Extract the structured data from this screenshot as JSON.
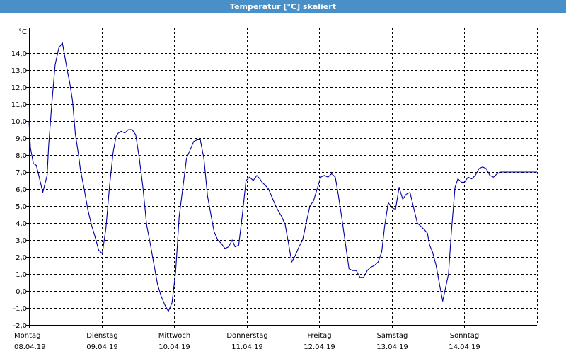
{
  "window": {
    "title": "Temperatur [°C] skaliert"
  },
  "colors": {
    "titlebar": "#4a90c8",
    "line": "#0000a0",
    "grid": "#000000"
  },
  "chart_data": {
    "type": "line",
    "title": "Temperatur [°C] skaliert",
    "ylabel": "°C",
    "xlabel": "",
    "ylim": [
      -2.0,
      15.5
    ],
    "yticks": [
      -2.0,
      -1.0,
      0.0,
      1.0,
      2.0,
      3.0,
      4.0,
      5.0,
      6.0,
      7.0,
      8.0,
      9.0,
      10.0,
      11.0,
      12.0,
      13.0,
      14.0
    ],
    "ytick_labels": [
      "-2,0",
      "-1,0",
      "0,0",
      "1,0",
      "2,0",
      "3,0",
      "4,0",
      "5,0",
      "6,0",
      "7,0",
      "8,0",
      "9,0",
      "10,0",
      "11,0",
      "12,0",
      "13,0",
      "14,0"
    ],
    "x_unit": "day",
    "xlim": [
      0,
      7
    ],
    "xticks": [
      {
        "day": "Montag",
        "date": "08.04.19"
      },
      {
        "day": "Dienstag",
        "date": "09.04.19"
      },
      {
        "day": "Mittwoch",
        "date": "10.04.19"
      },
      {
        "day": "Donnerstag",
        "date": "11.04.19"
      },
      {
        "day": "Freitag",
        "date": "12.04.19"
      },
      {
        "day": "Samstag",
        "date": "13.04.19"
      },
      {
        "day": "Sonntag",
        "date": "14.04.19"
      }
    ],
    "grid": true,
    "series": [
      {
        "x": [
          0.0,
          0.02,
          0.06,
          0.1,
          0.14,
          0.19,
          0.25,
          0.27,
          0.31,
          0.36,
          0.41,
          0.46,
          0.51,
          0.54,
          0.56,
          0.6,
          0.64,
          0.68,
          0.71,
          0.76,
          0.81,
          0.86,
          0.91,
          0.96,
          1.01,
          1.06,
          1.11,
          1.16,
          1.2,
          1.23,
          1.27,
          1.32,
          1.37,
          1.42,
          1.47,
          1.52,
          1.57,
          1.62,
          1.67,
          1.72,
          1.77,
          1.82,
          1.87,
          1.92,
          1.97,
          2.02,
          2.07,
          2.12,
          2.17,
          2.22,
          2.27,
          2.32,
          2.36,
          2.41,
          2.46,
          2.51,
          2.55,
          2.6,
          2.65,
          2.7,
          2.75,
          2.8,
          2.84,
          2.89,
          2.94,
          2.99,
          3.04,
          3.09,
          3.14,
          3.18,
          3.21,
          3.26,
          3.3,
          3.35,
          3.4,
          3.45,
          3.48,
          3.53,
          3.58,
          3.62,
          3.67,
          3.72,
          3.77,
          3.82,
          3.87,
          3.92,
          3.97,
          4.02,
          4.07,
          4.12,
          4.17,
          4.22,
          4.26,
          4.31,
          4.36,
          4.41,
          4.46,
          4.51,
          4.56,
          4.61,
          4.66,
          4.71,
          4.76,
          4.81,
          4.86,
          4.9,
          4.95,
          5.0,
          5.05,
          5.1,
          5.15,
          5.2,
          5.25,
          5.3,
          5.35,
          5.4,
          5.45,
          5.49,
          5.52,
          5.56,
          5.61,
          5.66,
          5.7,
          5.74,
          5.78,
          5.82,
          5.87,
          5.91,
          5.96,
          6.0,
          6.05,
          6.1,
          6.15,
          6.2,
          6.25,
          6.3,
          6.35,
          6.4,
          6.45,
          6.5,
          6.55,
          6.6,
          6.65,
          6.7,
          6.75,
          6.8,
          6.85,
          6.9,
          6.95,
          7.0
        ],
        "y": [
          10.0,
          8.4,
          7.5,
          7.4,
          6.7,
          5.8,
          6.8,
          8.5,
          10.8,
          13.3,
          14.3,
          14.6,
          13.4,
          12.7,
          12.3,
          11.2,
          9.2,
          8.1,
          7.1,
          6.0,
          4.8,
          3.9,
          3.2,
          2.4,
          2.2,
          3.7,
          6.2,
          8.2,
          9.1,
          9.3,
          9.4,
          9.3,
          9.5,
          9.5,
          9.2,
          7.8,
          6.1,
          3.9,
          2.8,
          1.6,
          0.4,
          -0.3,
          -0.8,
          -1.2,
          -0.7,
          1.1,
          4.4,
          6.1,
          7.8,
          8.3,
          8.8,
          8.9,
          8.9,
          7.8,
          5.6,
          4.4,
          3.5,
          3.0,
          2.8,
          2.5,
          2.6,
          3.0,
          2.6,
          2.7,
          4.5,
          6.5,
          6.7,
          6.5,
          6.8,
          6.6,
          6.4,
          6.2,
          6.0,
          5.5,
          5.0,
          4.6,
          4.4,
          3.9,
          2.7,
          1.7,
          2.1,
          2.6,
          3.0,
          4.0,
          5.0,
          5.3,
          6.0,
          6.7,
          6.8,
          6.7,
          6.9,
          6.7,
          5.7,
          4.3,
          2.8,
          1.3,
          1.2,
          1.2,
          0.8,
          0.8,
          1.2,
          1.4,
          1.5,
          1.7,
          2.3,
          3.8,
          5.2,
          4.9,
          4.8,
          6.1,
          5.4,
          5.7,
          5.8,
          4.9,
          4.0,
          3.8,
          3.6,
          3.4,
          2.7,
          2.3,
          1.5,
          0.3,
          -0.6,
          0.2,
          1.0,
          3.5,
          6.1,
          6.6,
          6.4,
          6.4,
          6.7,
          6.6,
          6.8,
          7.2,
          7.3,
          7.2,
          6.8,
          6.7,
          6.9,
          7.0,
          7.0,
          7.0,
          7.0,
          7.0,
          7.0,
          7.0,
          7.0,
          7.0,
          7.0,
          7.0
        ]
      }
    ]
  }
}
